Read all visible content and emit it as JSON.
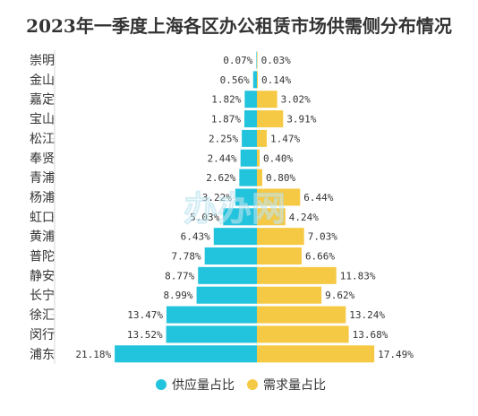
{
  "chart_data": {
    "type": "bar",
    "orientation": "horizontal-diverging",
    "title": "2023年一季度上海各区办公租赁市场供需侧分布情况",
    "categories": [
      "崇明",
      "金山",
      "嘉定",
      "宝山",
      "松江",
      "奉贤",
      "青浦",
      "杨浦",
      "虹口",
      "黄浦",
      "普陀",
      "静安",
      "长宁",
      "徐汇",
      "闵行",
      "浦东"
    ],
    "series": [
      {
        "name": "供应量占比",
        "side": "left",
        "color": "#22c3dc",
        "values": [
          0.07,
          0.56,
          1.82,
          1.87,
          2.25,
          2.44,
          2.62,
          3.22,
          5.03,
          6.43,
          7.78,
          8.77,
          8.99,
          13.47,
          13.52,
          21.18
        ],
        "labels": [
          "0.07%",
          "0.56%",
          "1.82%",
          "1.87%",
          "2.25%",
          "2.44%",
          "2.62%",
          "3.22%",
          "5.03%",
          "6.43%",
          "7.78%",
          "8.77%",
          "8.99%",
          "13.47%",
          "13.52%",
          "21.18%"
        ]
      },
      {
        "name": "需求量占比",
        "side": "right",
        "color": "#f6c945",
        "values": [
          0.03,
          0.14,
          3.02,
          3.91,
          1.47,
          0.4,
          0.8,
          6.44,
          4.24,
          7.03,
          6.66,
          11.83,
          9.62,
          13.24,
          13.68,
          17.49
        ],
        "labels": [
          "0.03%",
          "0.14%",
          "3.02%",
          "3.91%",
          "1.47%",
          "0.40%",
          "0.80%",
          "6.44%",
          "4.24%",
          "7.03%",
          "6.66%",
          "11.83%",
          "9.62%",
          "13.24%",
          "13.68%",
          "17.49%"
        ]
      }
    ],
    "unit": "%",
    "legend_position": "bottom",
    "grid": false,
    "watermark": "办办网"
  }
}
